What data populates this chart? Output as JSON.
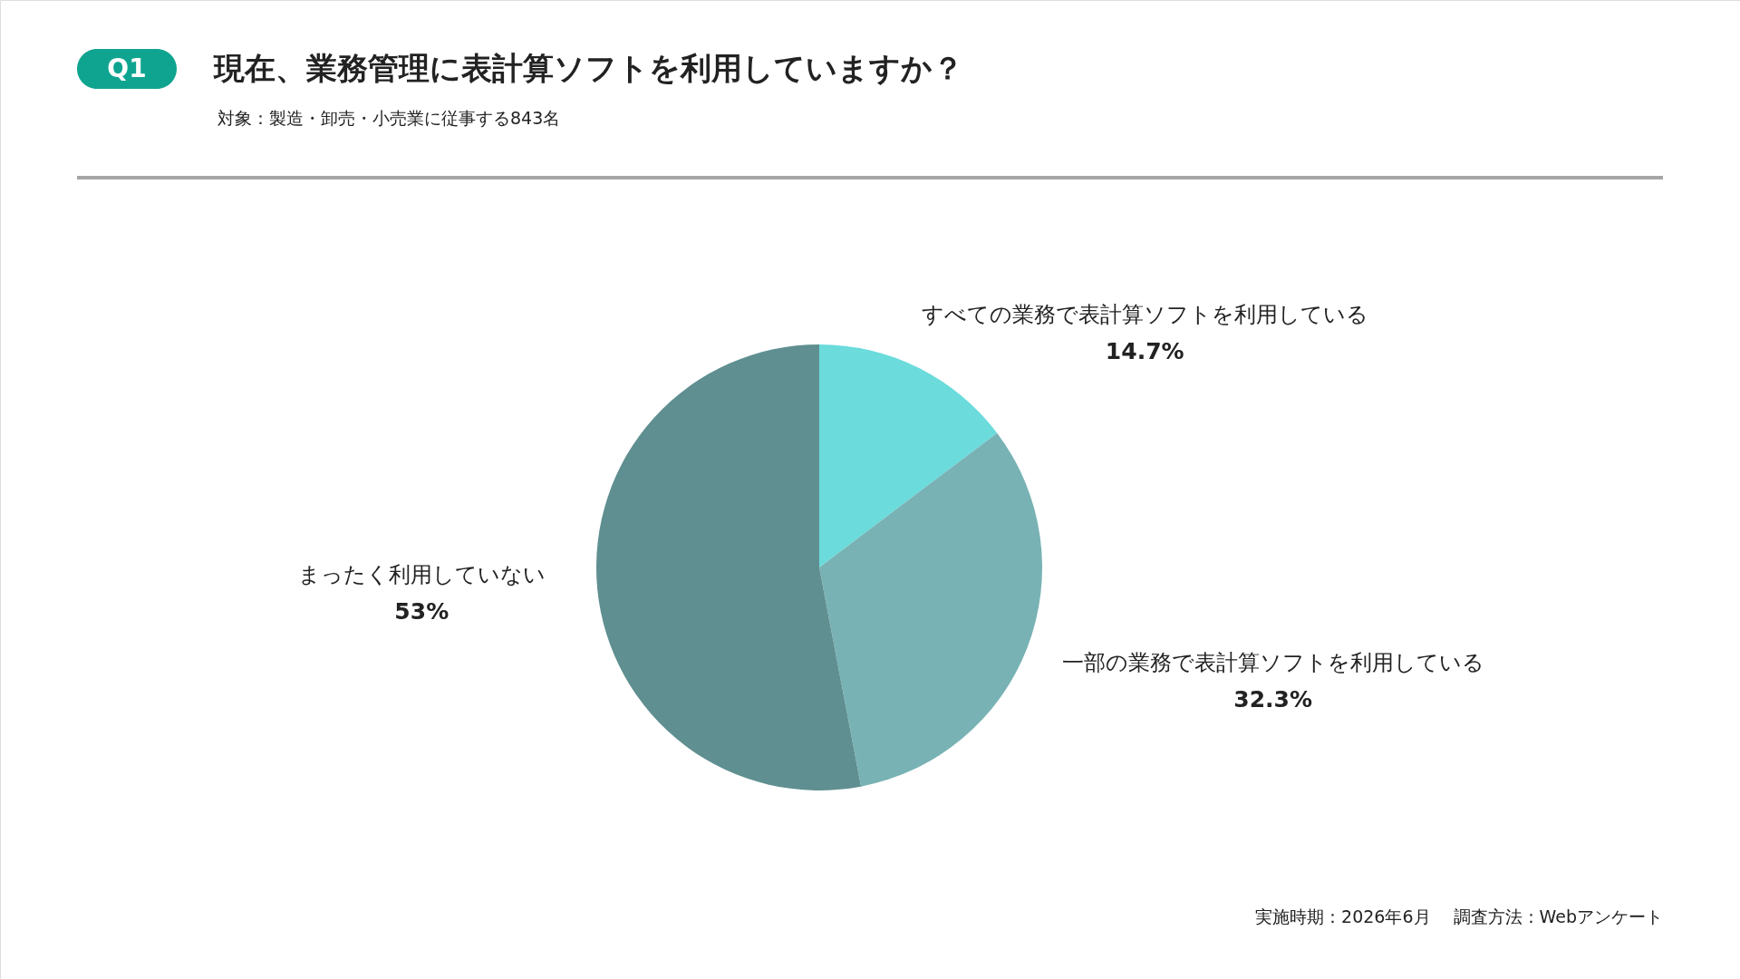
{
  "chart_data": {
    "type": "pie",
    "title": "現在、業務管理に表計算ソフトを利用していますか？",
    "subtitle": "対象：製造・卸売・小売業に従事する843名",
    "categories": [
      "すべての業務で表計算ソフトを利用している",
      "一部の業務で表計算ソフトを利用している",
      "まったく利用していない"
    ],
    "values": [
      14.7,
      32.3,
      53
    ],
    "value_labels": [
      "14.7%",
      "32.3%",
      "53%"
    ],
    "colors": [
      "#6bdbdc",
      "#78b2b4",
      "#5f8f91"
    ],
    "annotations": [
      "Q1",
      "実施時期：2026年6月　 調査方法：Webアンケート"
    ]
  }
}
